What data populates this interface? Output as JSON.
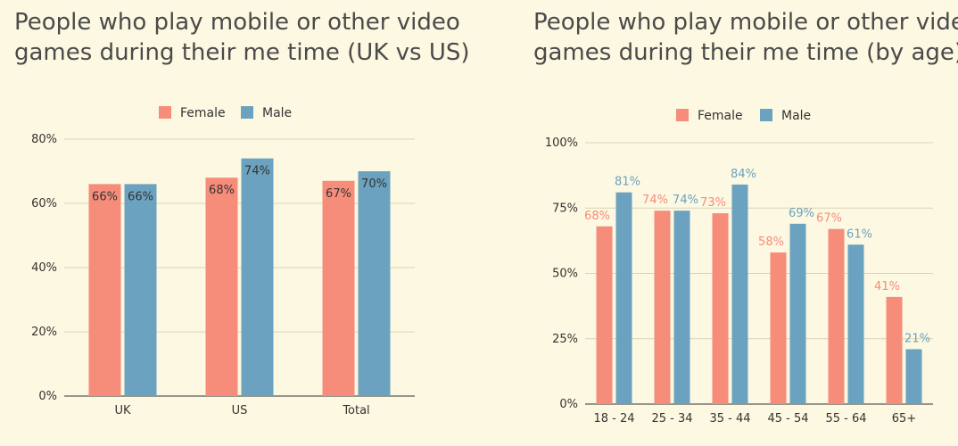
{
  "colors": {
    "female": "#f68c7a",
    "male": "#6aa2bf",
    "grid": "#d9d3b8",
    "axis": "#333333",
    "background": "#fdf8e1"
  },
  "chart_data": [
    {
      "type": "bar",
      "title_line1": "People who play mobile or other video",
      "title_line2": "games during their me time (UK vs US)",
      "categories": [
        "UK",
        "US",
        "Total"
      ],
      "series": [
        {
          "name": "Female",
          "values": [
            66,
            68,
            67
          ],
          "labels": [
            "66%",
            "68%",
            "67%"
          ]
        },
        {
          "name": "Male",
          "values": [
            66,
            74,
            70
          ],
          "labels": [
            "66%",
            "74%",
            "70%"
          ]
        }
      ],
      "ylim": [
        0,
        80
      ],
      "yticks": [
        "0%",
        "20%",
        "40%",
        "60%",
        "80%"
      ],
      "legend": "top-center",
      "grid": true
    },
    {
      "type": "bar",
      "title_line1": "People who play mobile or other video",
      "title_line2": "games during their me time (by age)",
      "categories": [
        "18 - 24",
        "25 - 34",
        "35 - 44",
        "45 - 54",
        "55 - 64",
        "65+"
      ],
      "series": [
        {
          "name": "Female",
          "values": [
            68,
            74,
            73,
            58,
            67,
            41
          ],
          "labels": [
            "68%",
            "74%",
            "73%",
            "58%",
            "67%",
            "41%"
          ]
        },
        {
          "name": "Male",
          "values": [
            81,
            74,
            84,
            69,
            61,
            21
          ],
          "labels": [
            "81%",
            "74%",
            "84%",
            "69%",
            "61%",
            "21%"
          ]
        }
      ],
      "ylim": [
        0,
        100
      ],
      "yticks": [
        "0%",
        "25%",
        "50%",
        "75%",
        "100%"
      ],
      "legend": "top-center",
      "grid": true
    }
  ]
}
